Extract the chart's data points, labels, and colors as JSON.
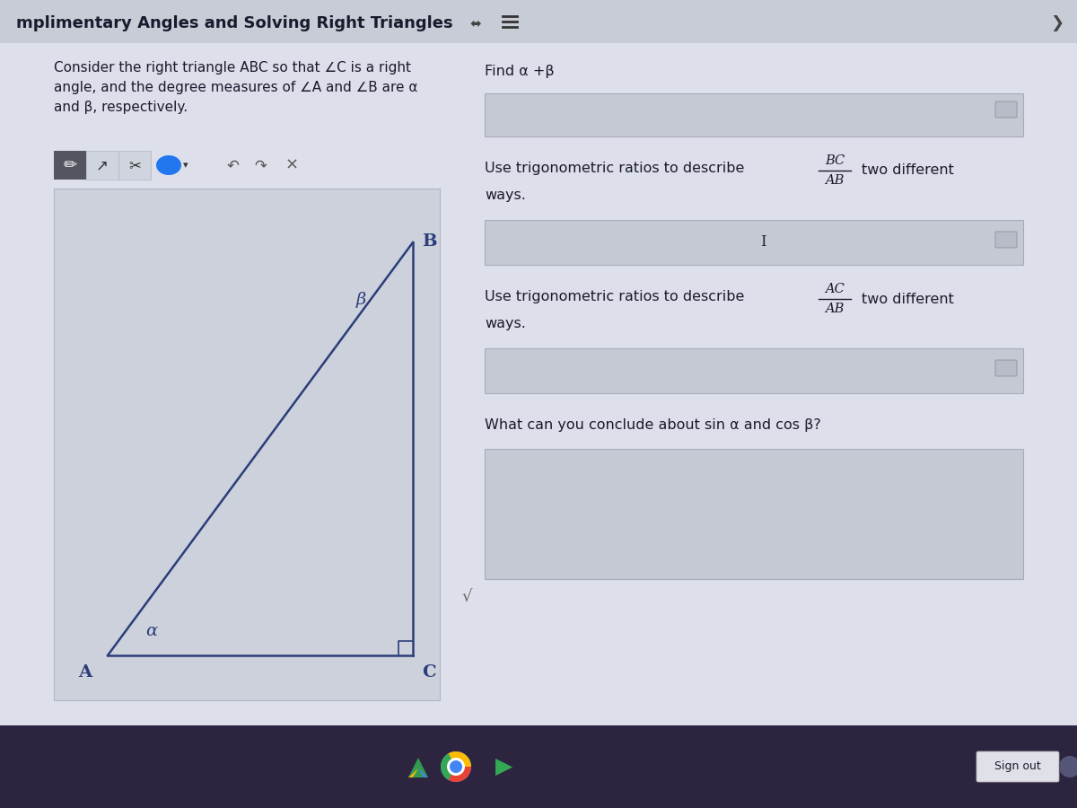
{
  "title": "mplimentary Angles and Solving Right Triangles",
  "header_bg": "#c8ccd6",
  "content_bg": "#dde0ea",
  "tri_panel_bg": "#cdd1dc",
  "taskbar_bg": "#2d2540",
  "tri_color": "#2c3e7a",
  "tri_lw": 1.8,
  "font_color": "#1a1a2e",
  "input_box_color": "#c5c9d4",
  "input_box_border": "#aaaabc",
  "problem_text": "Consider the right triangle ABC so that ∠C is a right\nangle, and the degree measures of ∠A and ∠B are α\nand β, respectively.",
  "find_text": "Find α +β",
  "q2_text": "Use trigonometric ratios to describe",
  "q2_num": "BC",
  "q2_den": "AB",
  "q3_num": "AC",
  "q3_den": "AB",
  "q4_text": "What can you conclude about sin α and cos β?",
  "two_different": "two different",
  "ways": "ways."
}
